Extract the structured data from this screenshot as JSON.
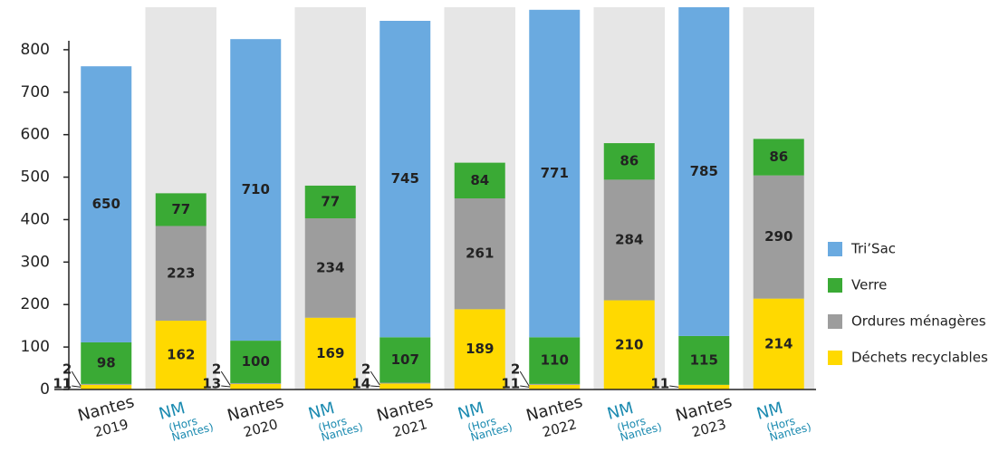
{
  "chart_data": {
    "type": "stacked_bar",
    "categories": [
      [
        "Nantes",
        "2019"
      ],
      [
        "NM",
        "(Hors",
        "Nantes)"
      ],
      [
        "Nantes",
        "2020"
      ],
      [
        "NM",
        "(Hors",
        "Nantes)"
      ],
      [
        "Nantes",
        "2021"
      ],
      [
        "NM",
        "(Hors",
        "Nantes)"
      ],
      [
        "Nantes",
        "2022"
      ],
      [
        "NM",
        "(Hors",
        "Nantes)"
      ],
      [
        "Nantes",
        "2023"
      ],
      [
        "NM",
        "(Hors",
        "Nantes)"
      ]
    ],
    "series": [
      {
        "name": "Déchets recyclables",
        "color": "#ffd900",
        "values": [
          11,
          162,
          13,
          169,
          14,
          189,
          11,
          210,
          11,
          214
        ]
      },
      {
        "name": "Ordures ménagères",
        "color": "#9d9d9d",
        "values": [
          2,
          223,
          2,
          234,
          2,
          261,
          2,
          284,
          null,
          290
        ]
      },
      {
        "name": "Verre",
        "color": "#3aaa35",
        "values": [
          98,
          77,
          100,
          77,
          107,
          84,
          110,
          86,
          115,
          86
        ]
      },
      {
        "name": "Tri’Sac",
        "color": "#6aaae0",
        "values": [
          650,
          null,
          710,
          null,
          745,
          null,
          771,
          null,
          785,
          null
        ]
      }
    ],
    "ylim": [
      0,
      900
    ],
    "yticks": [
      0,
      100,
      200,
      300,
      400,
      500,
      600,
      700,
      800
    ]
  }
}
